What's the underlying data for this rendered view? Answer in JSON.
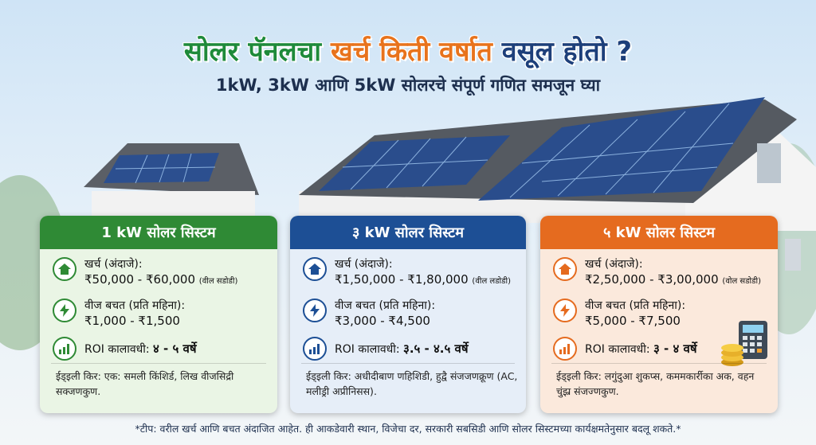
{
  "header": {
    "title_part1": "सोलर पॅनलचा",
    "title_part2": "खर्च",
    "title_part3": "किती वर्षात",
    "title_part4": "वसूल होतो ?",
    "subtitle": "1kW, 3kW आणि 5kW सोलरचे संपूर्ण गणित समजून घ्या"
  },
  "cards": [
    {
      "title": "1 kW सोलर सिस्टम",
      "cost_label": "खर्च (अंदाजे):",
      "cost_value": "₹50,000 - ₹60,000",
      "cost_note": "(वील सडोडी)",
      "saving_label": "वीज बचत (प्रति महिना):",
      "saving_value": "₹1,000 - ₹1,500",
      "roi_label": "ROI कालावधी:",
      "roi_value": "४ - ५ वर्षे",
      "ideal": "ईड्इली किर: एक: समली किंशिर्ड, लिख वीजसिद्री सक्जणकुण."
    },
    {
      "title": "३ kW सोलर सिस्टम",
      "cost_label": "खर्च (अंदाजे):",
      "cost_value": "₹1,50,000 - ₹1,80,000",
      "cost_note": "(वील लडोडी)",
      "saving_label": "वीज बचत (प्रति महिना):",
      "saving_value": "₹3,000 - ₹4,500",
      "roi_label": "ROI कालावधी:",
      "roi_value": "३.५ - ४.५ वर्षे",
      "ideal": "ईड्इली किर: अधीदीबाण णहिशिडी, हुद्वै संजजणक्रूण (AC, मलीड्री अप्रीनिसस)."
    },
    {
      "title": "५ kW सोलर सिस्टम",
      "cost_label": "खर्च (अंदाजे):",
      "cost_value": "₹2,50,000 - ₹3,00,000",
      "cost_note": "(वोल सडोडी)",
      "saving_label": "वीज बचत (प्रति महिना):",
      "saving_value": "₹5,000 - ₹7,500",
      "roi_label": "ROI कालावधी:",
      "roi_value": "३ - ४ वर्षे",
      "ideal": "ईड्इली किर: लगुंदुआ शुकप्स, कममकार्रीका अक, वहन चुंझ्र संजज्णकुण."
    }
  ],
  "footnote": "*टीप: वरील खर्च आणि बचत अंदाजित आहेत. ही आकडेवारी स्थान, विजेचा दर, सरकारी सबसिडी आणि सोलर सिस्टमच्या कार्यक्षमतेनुसार बदलू शकते.*",
  "icons": [
    "house-icon",
    "lightning-icon",
    "chart-icon",
    "calculator-icon",
    "coins-icon"
  ],
  "colors": {
    "green": "#2f8a35",
    "blue": "#1d4f95",
    "orange": "#e56b1f",
    "title_green": "#1e8a3a"
  }
}
